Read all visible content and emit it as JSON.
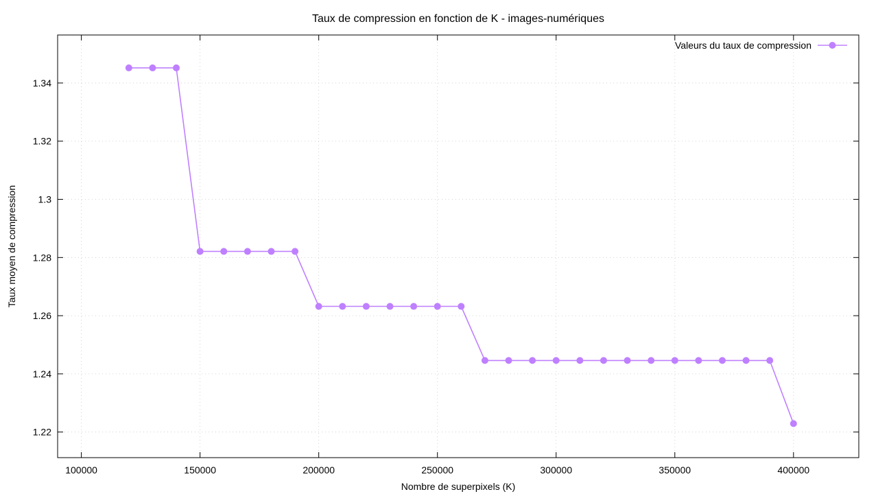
{
  "chart_data": {
    "type": "line",
    "title": "Taux de compression en fonction de K - images-numériques",
    "xlabel": "Nombre de superpixels (K)",
    "ylabel": "Taux moyen de compression",
    "xlim": [
      90000,
      427500
    ],
    "ylim": [
      1.2112,
      1.3565
    ],
    "xticks": [
      100000,
      150000,
      200000,
      250000,
      300000,
      350000,
      400000
    ],
    "xtick_labels": [
      "100000",
      "150000",
      "200000",
      "250000",
      "300000",
      "350000",
      "400000"
    ],
    "yticks": [
      1.22,
      1.24,
      1.26,
      1.28,
      1.3,
      1.32,
      1.34
    ],
    "ytick_labels": [
      "1.22",
      "1.24",
      "1.26",
      "1.28",
      "1.3",
      "1.32",
      "1.34"
    ],
    "grid": true,
    "legend_position": "top-right",
    "series": [
      {
        "name": "Valeurs du taux de compression",
        "color": "#bf80ff",
        "marker": "circle",
        "x": [
          120000,
          130000,
          140000,
          150000,
          160000,
          170000,
          180000,
          190000,
          200000,
          210000,
          220000,
          230000,
          240000,
          250000,
          260000,
          270000,
          280000,
          290000,
          300000,
          310000,
          320000,
          330000,
          340000,
          350000,
          360000,
          370000,
          380000,
          390000,
          400000
        ],
        "y": [
          1.3452,
          1.3452,
          1.3452,
          1.2821,
          1.2821,
          1.2821,
          1.2821,
          1.2821,
          1.2632,
          1.2632,
          1.2632,
          1.2632,
          1.2632,
          1.2632,
          1.2632,
          1.2446,
          1.2446,
          1.2446,
          1.2446,
          1.2446,
          1.2446,
          1.2446,
          1.2446,
          1.2446,
          1.2446,
          1.2446,
          1.2446,
          1.2446,
          1.2229
        ]
      }
    ]
  }
}
